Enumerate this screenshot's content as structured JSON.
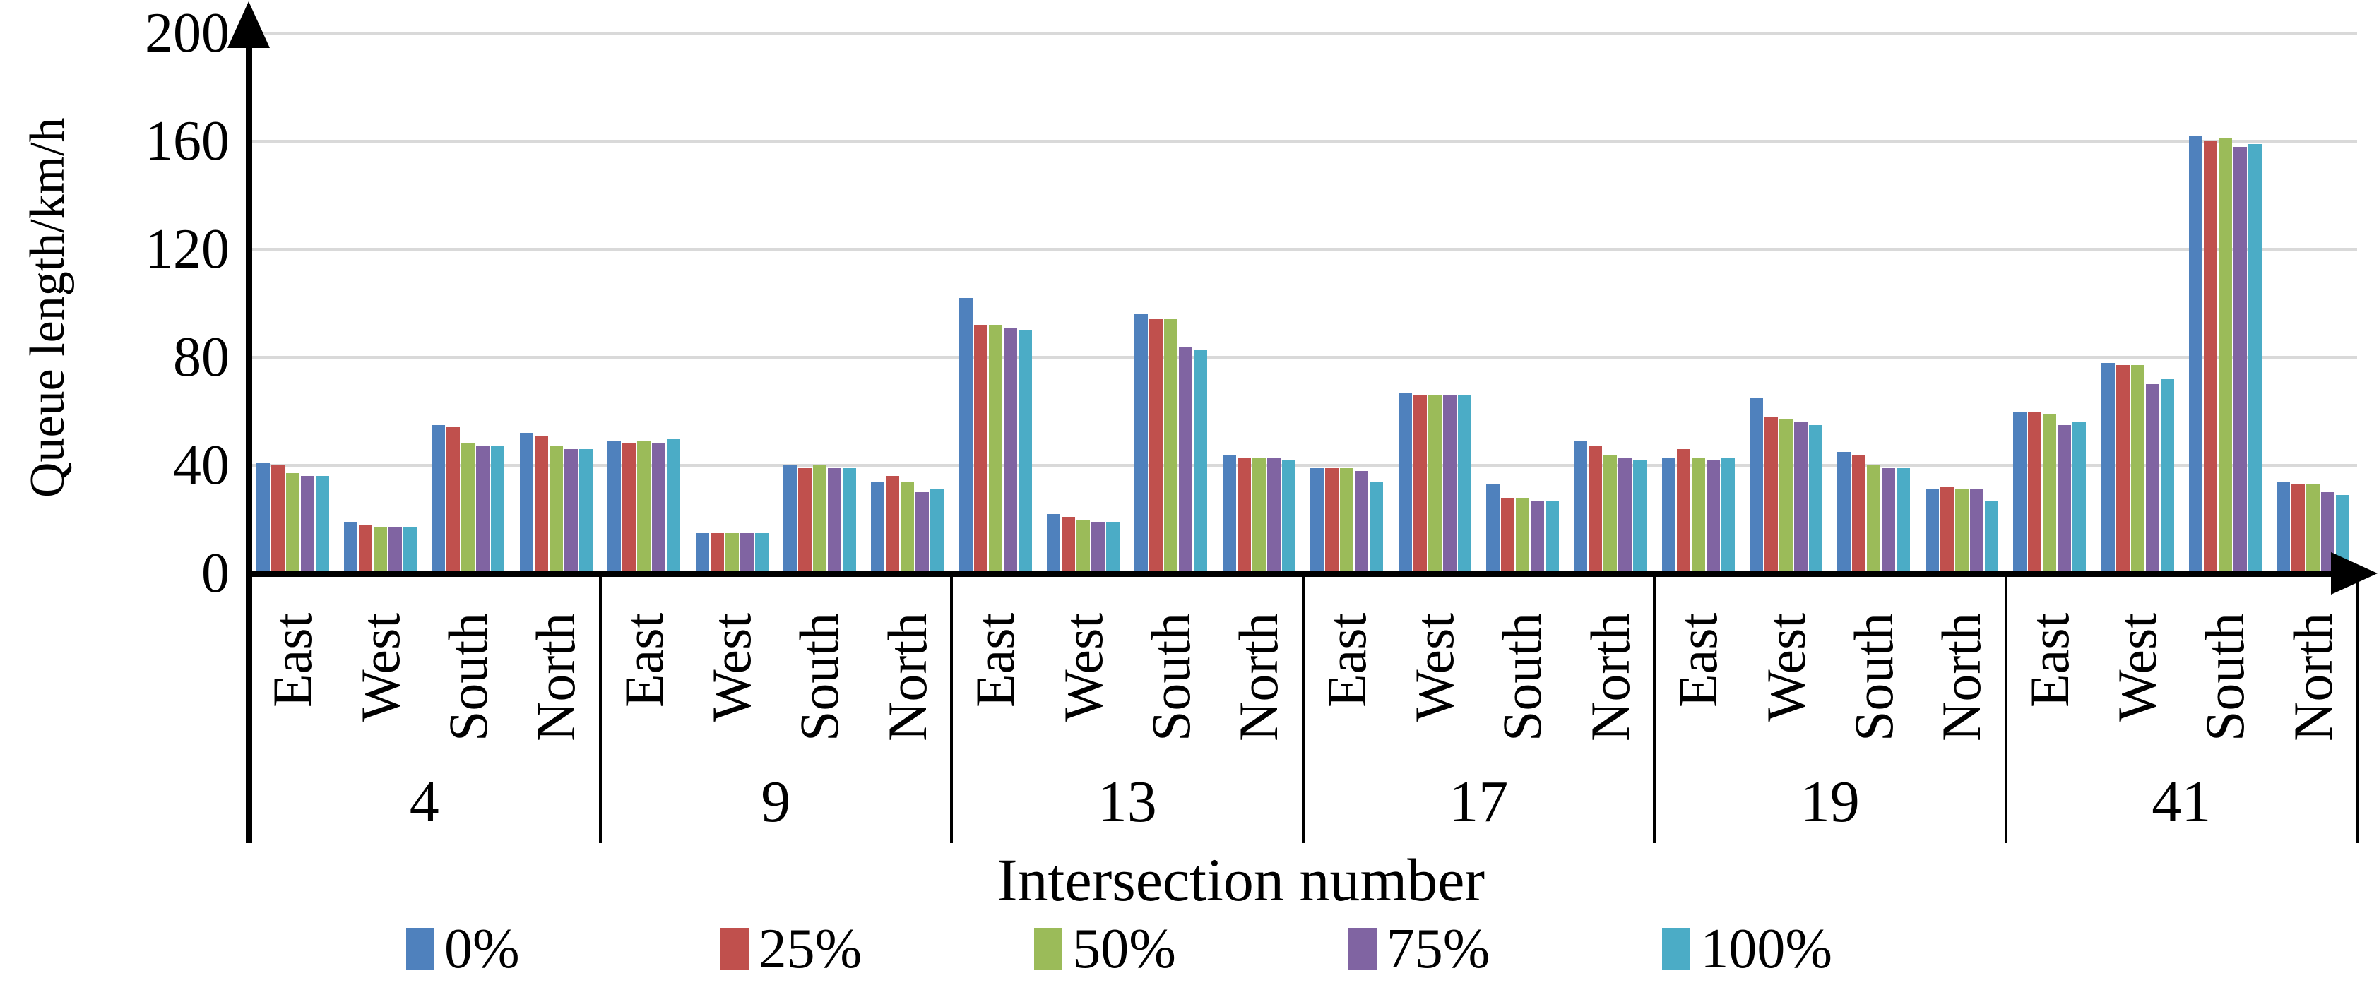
{
  "chart_data": {
    "type": "bar",
    "ylabel": "Queue length/km/h",
    "xlabel": "Intersection number",
    "ylim": [
      0,
      200
    ],
    "yticks": [
      0,
      40,
      80,
      120,
      160,
      200
    ],
    "grid": "horizontal",
    "legend_position": "bottom",
    "gridline_color": "#d9d9d9",
    "axis_color": "#000000",
    "series": [
      {
        "name": "0%",
        "color": "#4F81BD"
      },
      {
        "name": "25%",
        "color": "#C0504D"
      },
      {
        "name": "50%",
        "color": "#9BBB59"
      },
      {
        "name": "75%",
        "color": "#8064A2"
      },
      {
        "name": "100%",
        "color": "#4BACC6"
      }
    ],
    "groups": [
      {
        "group": "4",
        "directions": [
          {
            "label": "East",
            "values": [
              41,
              40,
              37,
              36,
              36
            ]
          },
          {
            "label": "West",
            "values": [
              19,
              18,
              17,
              17,
              17
            ]
          },
          {
            "label": "South",
            "values": [
              55,
              54,
              48,
              47,
              47
            ]
          },
          {
            "label": "North",
            "values": [
              52,
              51,
              47,
              46,
              46
            ]
          }
        ]
      },
      {
        "group": "9",
        "directions": [
          {
            "label": "East",
            "values": [
              49,
              48,
              49,
              48,
              50
            ]
          },
          {
            "label": "West",
            "values": [
              15,
              15,
              15,
              15,
              15
            ]
          },
          {
            "label": "South",
            "values": [
              40,
              39,
              40,
              39,
              39
            ]
          },
          {
            "label": "North",
            "values": [
              34,
              36,
              34,
              30,
              31
            ]
          }
        ]
      },
      {
        "group": "13",
        "directions": [
          {
            "label": "East",
            "values": [
              102,
              92,
              92,
              91,
              90
            ]
          },
          {
            "label": "West",
            "values": [
              22,
              21,
              20,
              19,
              19
            ]
          },
          {
            "label": "South",
            "values": [
              96,
              94,
              94,
              84,
              83
            ]
          },
          {
            "label": "North",
            "values": [
              44,
              43,
              43,
              43,
              42
            ]
          }
        ]
      },
      {
        "group": "17",
        "directions": [
          {
            "label": "East",
            "values": [
              39,
              39,
              39,
              38,
              34
            ]
          },
          {
            "label": "West",
            "values": [
              67,
              66,
              66,
              66,
              66
            ]
          },
          {
            "label": "South",
            "values": [
              33,
              28,
              28,
              27,
              27
            ]
          },
          {
            "label": "North",
            "values": [
              49,
              47,
              44,
              43,
              42
            ]
          }
        ]
      },
      {
        "group": "19",
        "directions": [
          {
            "label": "East",
            "values": [
              43,
              46,
              43,
              42,
              43
            ]
          },
          {
            "label": "West",
            "values": [
              65,
              58,
              57,
              56,
              55
            ]
          },
          {
            "label": "South",
            "values": [
              45,
              44,
              40,
              39,
              39
            ]
          },
          {
            "label": "North",
            "values": [
              31,
              32,
              31,
              31,
              27
            ]
          }
        ]
      },
      {
        "group": "41",
        "directions": [
          {
            "label": "East",
            "values": [
              60,
              60,
              59,
              55,
              56
            ]
          },
          {
            "label": "West",
            "values": [
              78,
              77,
              77,
              70,
              72
            ]
          },
          {
            "label": "South",
            "values": [
              162,
              160,
              161,
              158,
              159
            ]
          },
          {
            "label": "North",
            "values": [
              34,
              33,
              33,
              30,
              29
            ]
          }
        ]
      }
    ]
  }
}
